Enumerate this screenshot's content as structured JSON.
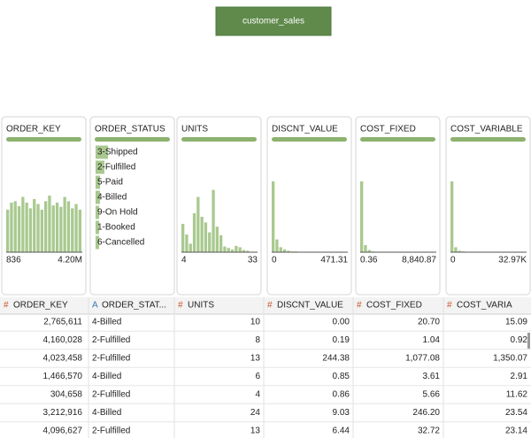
{
  "dataset_button": "customer_sales",
  "columns": [
    {
      "name": "ORDER_KEY",
      "bars": [
        60,
        70,
        72,
        65,
        78,
        70,
        62,
        75,
        68,
        60,
        72,
        80,
        66,
        70,
        64,
        78,
        72,
        62,
        68,
        60
      ],
      "min": "836",
      "max": "4.20M"
    },
    {
      "name": "ORDER_STATUS",
      "items": [
        {
          "label": "3-Shipped",
          "bar": 14
        },
        {
          "label": "2-Fulfilled",
          "bar": 10
        },
        {
          "label": "5-Paid",
          "bar": 5
        },
        {
          "label": "4-Billed",
          "bar": 5
        },
        {
          "label": "9-On Hold",
          "bar": 4
        },
        {
          "label": "1-Booked",
          "bar": 4
        },
        {
          "label": "6-Cancelled",
          "bar": 4
        }
      ]
    },
    {
      "name": "UNITS",
      "bars": [
        40,
        25,
        12,
        55,
        78,
        50,
        42,
        28,
        88,
        36,
        24,
        8,
        6,
        4,
        9,
        7,
        3,
        2,
        0,
        0
      ],
      "min": "4",
      "max": "33"
    },
    {
      "name": "DISCNT_VALUE",
      "bars": [
        100,
        18,
        7,
        4,
        2,
        1,
        1,
        0,
        0,
        0,
        0,
        0,
        0,
        0,
        0,
        0,
        0,
        0,
        0,
        0
      ],
      "min": "0",
      "max": "471.31"
    },
    {
      "name": "COST_FIXED",
      "bars": [
        100,
        10,
        3,
        1,
        0,
        0,
        0,
        0,
        0,
        0,
        0,
        0,
        0,
        0,
        0,
        0,
        0,
        0,
        0,
        0
      ],
      "min": "0.36",
      "max": "8,840.87"
    },
    {
      "name": "COST_VARIABLE",
      "bars": [
        100,
        7,
        2,
        1,
        0,
        0,
        0,
        0,
        0,
        0,
        0,
        0,
        0,
        0,
        0,
        0,
        0,
        0,
        0,
        0
      ],
      "min": "0",
      "max": "32.97K"
    }
  ],
  "table": {
    "header": [
      {
        "icon": "#",
        "label": "ORDER_KEY"
      },
      {
        "icon": "A",
        "label": "ORDER_STAT..."
      },
      {
        "icon": "#",
        "label": "UNITS"
      },
      {
        "icon": "#",
        "label": "DISCNT_VALUE"
      },
      {
        "icon": "#",
        "label": "COST_FIXED"
      },
      {
        "icon": "#",
        "label": "COST_VARIA"
      }
    ],
    "rows": [
      [
        "2,765,611",
        "4-Billed",
        "10",
        "0.00",
        "20.70",
        "15.09"
      ],
      [
        "4,160,028",
        "2-Fulfilled",
        "8",
        "0.19",
        "1.04",
        "0.92"
      ],
      [
        "4,023,458",
        "2-Fulfilled",
        "13",
        "244.38",
        "1,077.08",
        "1,350.07"
      ],
      [
        "1,466,570",
        "4-Billed",
        "6",
        "0.85",
        "3.61",
        "2.91"
      ],
      [
        "304,658",
        "2-Fulfilled",
        "4",
        "0.86",
        "5.66",
        "11.62"
      ],
      [
        "3,212,916",
        "4-Billed",
        "24",
        "9.03",
        "246.20",
        "23.54"
      ],
      [
        "4,096,627",
        "2-Fulfilled",
        "13",
        "6.44",
        "32.72",
        "23.14"
      ]
    ]
  }
}
